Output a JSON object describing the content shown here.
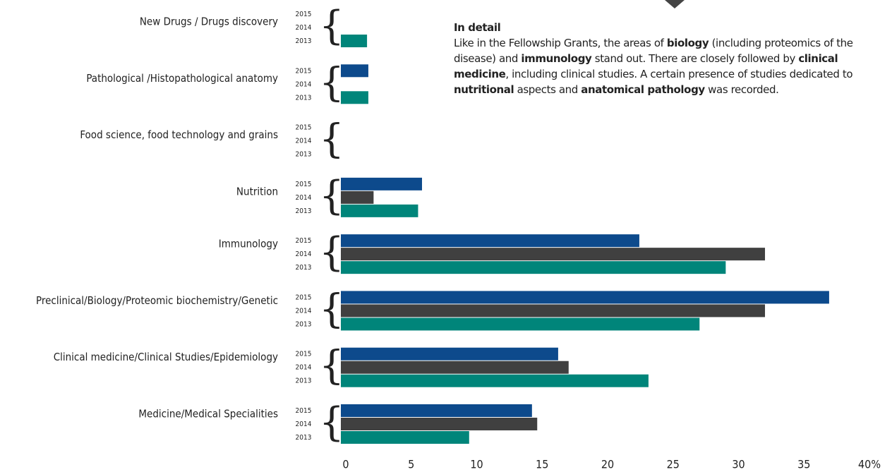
{
  "chart_data": {
    "type": "barh",
    "categories": [
      "New Drugs / Drugs discovery",
      "Pathological /Histopathological anatomy",
      "Food science, food technology and grains",
      "Nutrition",
      "Immunology",
      "Preclinical/Biology/Proteomic biochemistry/Genetic",
      "Clinical medicine/Clinical Studies/Epidemiology",
      "Medicine/Medical Specialities"
    ],
    "series": [
      {
        "name": "2015",
        "color": "#0d4a8c",
        "values": [
          0,
          2.1,
          0,
          6.2,
          22.8,
          37.3,
          16.6,
          14.6
        ]
      },
      {
        "name": "2014",
        "color": "#404040",
        "values": [
          0,
          0,
          0,
          2.5,
          32.4,
          32.4,
          17.4,
          15.0
        ]
      },
      {
        "name": "2013",
        "color": "#00857a",
        "values": [
          2.0,
          2.1,
          0,
          5.9,
          29.4,
          27.4,
          23.5,
          9.8
        ]
      }
    ],
    "xlim": [
      0,
      40
    ],
    "xticks": [
      0,
      5,
      10,
      15,
      20,
      25,
      30,
      35,
      {
        "value": 40,
        "label": "40%"
      }
    ],
    "annotation": {
      "title": "In detail",
      "runs": [
        {
          "text": "Like in the Fellowship Grants, the areas of ",
          "bold": false
        },
        {
          "text": "biology",
          "bold": true
        },
        {
          "text": " (including proteomics of the disease) and ",
          "bold": false
        },
        {
          "text": "immunology",
          "bold": true
        },
        {
          "text": " stand out. There are closely followed by ",
          "bold": false
        },
        {
          "text": "clinical medicine",
          "bold": true
        },
        {
          "text": ", including clinical studies. A certain presence of studies dedicated to ",
          "bold": false
        },
        {
          "text": "nutritional",
          "bold": true
        },
        {
          "text": " aspects and ",
          "bold": false
        },
        {
          "text": "anatomical pathology",
          "bold": true
        },
        {
          "text": " was recorded.",
          "bold": false
        }
      ]
    }
  }
}
